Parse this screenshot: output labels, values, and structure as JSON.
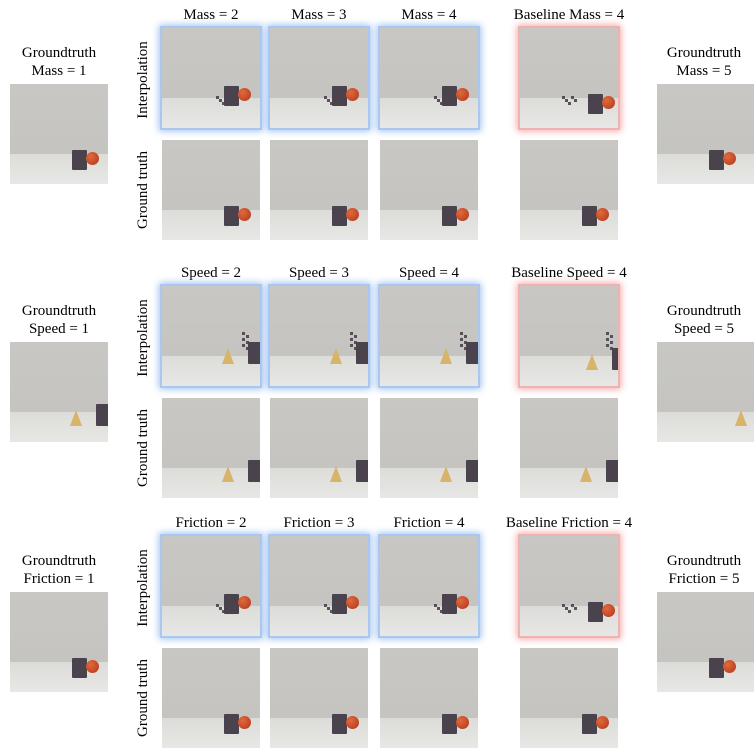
{
  "rows": [
    {
      "left_label": [
        "Groundtruth",
        "Mass = 1"
      ],
      "right_label": [
        "Groundtruth",
        "Mass = 5"
      ],
      "columns": [
        "Mass = 2",
        "Mass = 3",
        "Mass = 4",
        "Baseline Mass = 4"
      ],
      "row_labels": [
        "Interpolation",
        "Ground truth"
      ],
      "scene": "cube-ball"
    },
    {
      "left_label": [
        "Groundtruth",
        "Speed = 1"
      ],
      "right_label": [
        "Groundtruth",
        "Speed = 5"
      ],
      "columns": [
        "Speed = 2",
        "Speed = 3",
        "Speed = 4",
        "Baseline Speed = 4"
      ],
      "row_labels": [
        "Interpolation",
        "Ground truth"
      ],
      "scene": "cone-cube"
    },
    {
      "left_label": [
        "Groundtruth",
        "Friction = 1"
      ],
      "right_label": [
        "Groundtruth",
        "Friction = 5"
      ],
      "columns": [
        "Friction = 2",
        "Friction = 3",
        "Friction = 4",
        "Baseline Friction = 4"
      ],
      "row_labels": [
        "Interpolation",
        "Ground truth"
      ],
      "scene": "cube-ball"
    }
  ],
  "colors": {
    "interpolation_highlight": "#9dbff0",
    "baseline_highlight": "#f2a6a6"
  }
}
